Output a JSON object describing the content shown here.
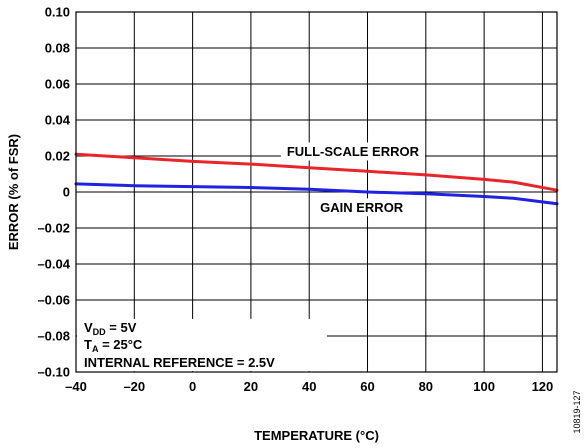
{
  "chart_data": {
    "type": "line",
    "xlabel": "TEMPERATURE (°C)",
    "ylabel": "ERROR (% of FSR)",
    "xlim": [
      -40,
      125
    ],
    "ylim": [
      -0.1,
      0.1
    ],
    "x_ticks": [
      "–40",
      "–20",
      "0",
      "20",
      "40",
      "60",
      "80",
      "100",
      "120"
    ],
    "y_ticks": [
      "0.10",
      "0.08",
      "0.06",
      "0.04",
      "0.02",
      "0",
      "–0.02",
      "–0.04",
      "–0.06",
      "–0.08",
      "–0.10"
    ],
    "grid": true,
    "series": [
      {
        "name": "FULL-SCALE ERROR",
        "color": "#e8262a",
        "x": [
          -40,
          -20,
          0,
          20,
          40,
          60,
          80,
          100,
          110,
          125
        ],
        "y": [
          0.021,
          0.019,
          0.017,
          0.0155,
          0.0135,
          0.0115,
          0.0095,
          0.007,
          0.0055,
          0.001
        ]
      },
      {
        "name": "GAIN ERROR",
        "color": "#1f23e0",
        "x": [
          -40,
          -20,
          0,
          20,
          40,
          60,
          80,
          100,
          110,
          125
        ],
        "y": [
          0.0045,
          0.0035,
          0.003,
          0.0025,
          0.0015,
          0.0,
          -0.001,
          -0.0025,
          -0.0035,
          -0.0065
        ]
      }
    ],
    "conditions": {
      "vdd_main": "V",
      "vdd_sub": "DD",
      "vdd_value": " = 5V",
      "ta_main": "T",
      "ta_sub": "A",
      "ta_value": " = 25°C",
      "reference": "INTERNAL REFERENCE = 2.5V"
    },
    "figure_id": "10819-127"
  }
}
